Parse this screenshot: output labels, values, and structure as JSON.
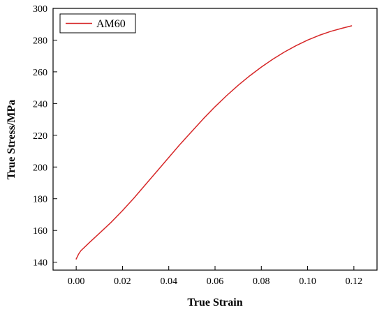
{
  "chart_data": {
    "type": "line",
    "title": "",
    "xlabel": "True Strain",
    "ylabel": "True Stress/MPa",
    "xlim": [
      -0.01,
      0.13
    ],
    "ylim": [
      135,
      300
    ],
    "xticks": [
      0.0,
      0.02,
      0.04,
      0.06,
      0.08,
      0.1,
      0.12
    ],
    "xtick_labels": [
      "0.00",
      "0.02",
      "0.04",
      "0.06",
      "0.08",
      "0.10",
      "0.12"
    ],
    "yticks": [
      140,
      160,
      180,
      200,
      220,
      240,
      260,
      280,
      300
    ],
    "ytick_labels": [
      "140",
      "160",
      "180",
      "200",
      "220",
      "240",
      "260",
      "280",
      "300"
    ],
    "grid": false,
    "legend_position": "top-left",
    "series": [
      {
        "name": "AM60",
        "color": "#d62728",
        "x": [
          0.0,
          0.0005,
          0.001,
          0.002,
          0.004,
          0.006,
          0.008,
          0.01,
          0.015,
          0.02,
          0.025,
          0.03,
          0.035,
          0.04,
          0.045,
          0.05,
          0.055,
          0.06,
          0.065,
          0.07,
          0.075,
          0.08,
          0.085,
          0.09,
          0.095,
          0.1,
          0.105,
          0.11,
          0.115,
          0.119
        ],
        "y": [
          142.0,
          143.5,
          145.0,
          147.2,
          150.0,
          152.8,
          155.5,
          158.2,
          165.0,
          172.5,
          180.5,
          189.0,
          197.5,
          206.0,
          214.5,
          222.5,
          230.5,
          238.0,
          245.0,
          251.5,
          257.5,
          263.0,
          268.0,
          272.5,
          276.5,
          280.0,
          283.0,
          285.5,
          287.5,
          289.0
        ]
      }
    ]
  }
}
